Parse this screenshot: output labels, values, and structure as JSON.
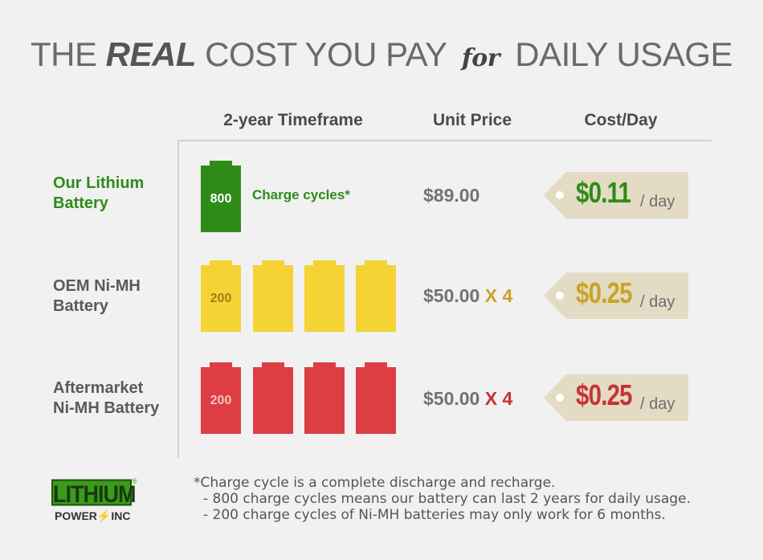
{
  "title": {
    "part1": "THE ",
    "real": "REAL",
    "part2": " COST YOU PAY ",
    "for": "for",
    "part3": " DAILY USAGE"
  },
  "columns": {
    "timeframe": "2-year Timeframe",
    "unit_price": "Unit Price",
    "cost_day": "Cost/Day"
  },
  "rows": [
    {
      "label": "Our Lithium\nBattery",
      "battery_color": "#2e8b18",
      "battery_count": 1,
      "battery_value": "800",
      "cycles_text": "Charge cycles*",
      "price": "$89.00",
      "multiplier": "",
      "cost": "$0.11",
      "per_day": "/ day",
      "cost_color": "#2e8b18"
    },
    {
      "label": "OEM Ni-MH\nBattery",
      "battery_color": "#f5d335",
      "battery_count": 4,
      "battery_value": "200",
      "price": "$50.00",
      "multiplier": "X 4",
      "cost": "$0.25",
      "per_day": "/ day",
      "cost_color": "#c8a428"
    },
    {
      "label": "Aftermarket\nNi-MH Battery",
      "battery_color": "#dc3e44",
      "battery_count": 4,
      "battery_value": "200",
      "price": "$50.00",
      "multiplier": "X 4",
      "cost": "$0.25",
      "per_day": "/ day",
      "cost_color": "#c83238"
    }
  ],
  "footnote": {
    "line1": "*Charge cycle is a complete discharge and recharge.",
    "line2": "- 800 charge cycles means our battery can last 2 years for daily usage.",
    "line3": "- 200 charge cycles of Ni-MH batteries may only work for 6 months."
  },
  "logo": {
    "main": "LITHIUM",
    "reg": "®",
    "sub_left": "POWER",
    "bolt": "⚡",
    "sub_right": "INC"
  }
}
